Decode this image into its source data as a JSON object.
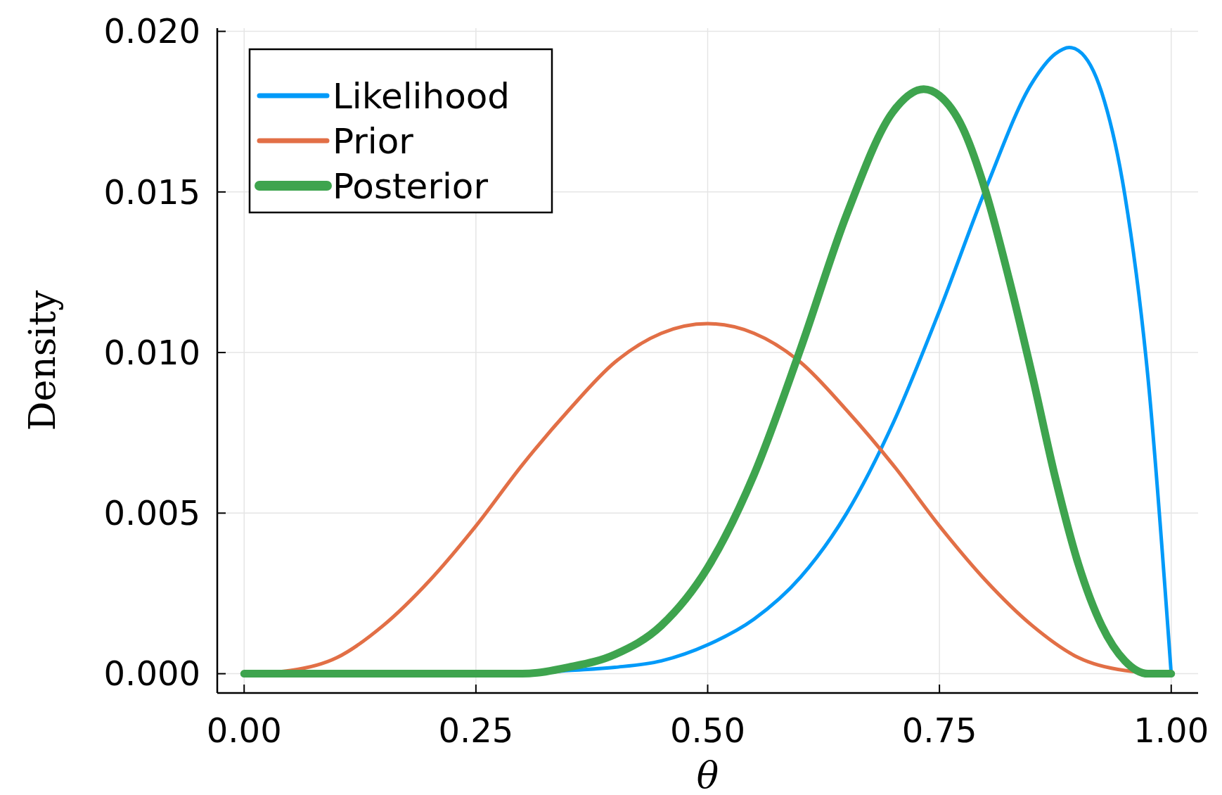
{
  "chart_data": {
    "type": "line",
    "xlabel": "θ",
    "ylabel": "Density",
    "xlim": [
      -0.029,
      1.029
    ],
    "ylim": [
      -0.0006,
      0.0201
    ],
    "xticks": [
      {
        "value": 0,
        "label": "0.00"
      },
      {
        "value": 0.25,
        "label": "0.25"
      },
      {
        "value": 0.5,
        "label": "0.50"
      },
      {
        "value": 0.75,
        "label": "0.75"
      },
      {
        "value": 1,
        "label": "1.00"
      }
    ],
    "yticks": [
      {
        "value": 0,
        "label": "0.000"
      },
      {
        "value": 0.005,
        "label": "0.005"
      },
      {
        "value": 0.01,
        "label": "0.010"
      },
      {
        "value": 0.015,
        "label": "0.015"
      },
      {
        "value": 0.02,
        "label": "0.020"
      }
    ],
    "grid": true,
    "legend": "top left",
    "series": [
      {
        "name": "Likelihood",
        "color": "#009af9",
        "x": [
          0,
          0.3,
          0.35,
          0.4,
          0.45,
          0.5,
          0.55,
          0.6,
          0.65,
          0.7,
          0.75,
          0.8,
          0.85,
          0.875,
          0.89,
          0.9,
          0.925,
          0.95,
          0.975,
          1
        ],
        "values": [
          0,
          0,
          0.0001,
          0.0002,
          0.0004,
          0.0009,
          0.0017,
          0.003,
          0.005,
          0.0078,
          0.0113,
          0.0151,
          0.0184,
          0.0193,
          0.0195,
          0.0194,
          0.0181,
          0.0149,
          0.0092,
          0
        ]
      },
      {
        "name": "Prior",
        "color": "#e26f46",
        "x": [
          0,
          0.05,
          0.1,
          0.15,
          0.2,
          0.25,
          0.3,
          0.35,
          0.4,
          0.45,
          0.5,
          0.55,
          0.6,
          0.65,
          0.7,
          0.75,
          0.8,
          0.85,
          0.9,
          0.95,
          1
        ],
        "values": [
          0,
          0.0001,
          0.0005,
          0.0015,
          0.0029,
          0.0046,
          0.0065,
          0.0082,
          0.0097,
          0.0106,
          0.0109,
          0.0106,
          0.0097,
          0.0082,
          0.0065,
          0.0046,
          0.0029,
          0.0015,
          0.0005,
          0.0001,
          0
        ]
      },
      {
        "name": "Posterior",
        "color": "#3ea44e",
        "x": [
          0,
          0.3,
          0.35,
          0.4,
          0.45,
          0.5,
          0.55,
          0.6,
          0.65,
          0.7,
          0.733,
          0.75,
          0.775,
          0.8,
          0.825,
          0.85,
          0.875,
          0.9,
          0.925,
          0.95,
          0.975,
          1
        ],
        "values": [
          0,
          0,
          0.0002,
          0.0006,
          0.0015,
          0.0033,
          0.0062,
          0.0101,
          0.0143,
          0.0175,
          0.0182,
          0.018,
          0.017,
          0.015,
          0.0123,
          0.0093,
          0.0061,
          0.0034,
          0.0015,
          0.0004,
          0,
          0
        ]
      }
    ]
  }
}
